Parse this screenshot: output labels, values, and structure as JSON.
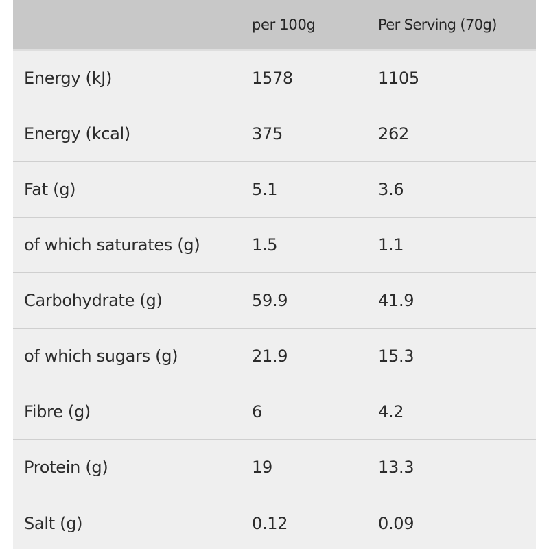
{
  "table": {
    "header": {
      "col1": "",
      "col2": "per 100g",
      "col3": "Per Serving (70g)"
    },
    "rows": [
      {
        "label": "Energy (kJ)",
        "per100": "1578",
        "serving": "1105"
      },
      {
        "label": "Energy (kcal)",
        "per100": "375",
        "serving": "262"
      },
      {
        "label": "Fat (g)",
        "per100": "5.1",
        "serving": "3.6"
      },
      {
        "label": "of which saturates (g)",
        "per100": "1.5",
        "serving": "1.1"
      },
      {
        "label": "Carbohydrate (g)",
        "per100": "59.9",
        "serving": "41.9"
      },
      {
        "label": "of which sugars (g)",
        "per100": "21.9",
        "serving": "15.3"
      },
      {
        "label": "Fibre (g)",
        "per100": "6",
        "serving": "4.2"
      },
      {
        "label": "Protein (g)",
        "per100": "19",
        "serving": "13.3"
      },
      {
        "label": "Salt (g)",
        "per100": "0.12",
        "serving": "0.09"
      }
    ]
  }
}
